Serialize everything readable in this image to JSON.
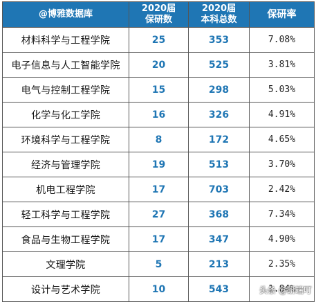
{
  "table": {
    "headers": {
      "college": "@博雅数据库",
      "grad_col_line1": "2020届",
      "grad_col_line2": "保研数",
      "total_col_line1": "2020届",
      "total_col_line2": "本科总数",
      "rate_col": "保研率"
    },
    "rows": [
      {
        "college": "材料科学与工程学院",
        "grad": "25",
        "total": "353",
        "rate": "7.08%"
      },
      {
        "college": "电子信息与人工智能学院",
        "grad": "20",
        "total": "525",
        "rate": "3.81%"
      },
      {
        "college": "电气与控制工程学院",
        "grad": "15",
        "total": "298",
        "rate": "5.03%"
      },
      {
        "college": "化学与化工学院",
        "grad": "16",
        "total": "326",
        "rate": "4.91%"
      },
      {
        "college": "环境科学与工程学院",
        "grad": "8",
        "total": "172",
        "rate": "4.65%"
      },
      {
        "college": "经济与管理学院",
        "grad": "19",
        "total": "513",
        "rate": "3.70%"
      },
      {
        "college": "机电工程学院",
        "grad": "17",
        "total": "703",
        "rate": "2.42%"
      },
      {
        "college": "轻工科学与工程学院",
        "grad": "27",
        "total": "368",
        "rate": "7.34%"
      },
      {
        "college": "食品与生物工程学院",
        "grad": "17",
        "total": "347",
        "rate": "4.90%"
      },
      {
        "college": "文理学院",
        "grad": "5",
        "total": "213",
        "rate": "2.35%"
      },
      {
        "college": "设计与艺术学院",
        "grad": "10",
        "total": "543",
        "rate": "1.84%"
      }
    ]
  },
  "watermark": "头条 @研端叮",
  "colors": {
    "header_bg": "#1f76b4",
    "number_text": "#1f76b4",
    "border": "#555555"
  }
}
